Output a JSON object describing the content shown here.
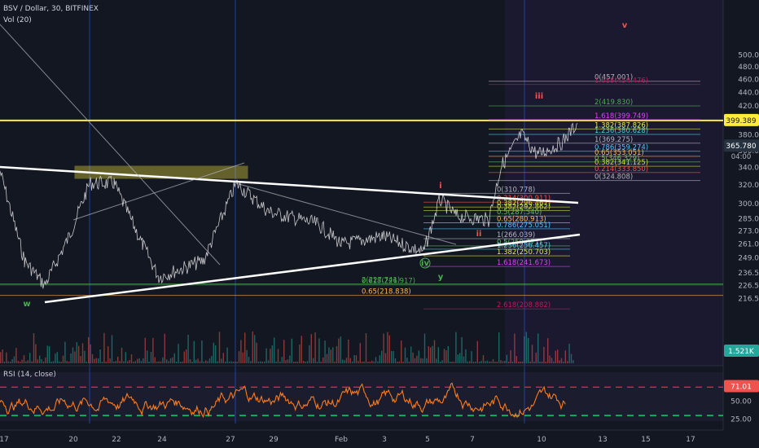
{
  "header": {
    "title": "BSV / Dollar, 30, BITFINEX",
    "volume": "Vol (20)",
    "rsi": "RSI (14, close)"
  },
  "chart_data": {
    "type": "line",
    "symbol": "BSV / Dollar",
    "interval": "30",
    "exchange": "BITFINEX",
    "y_scale": "log",
    "price_ticks": [
      500.0,
      480.0,
      460.0,
      440.0,
      420.0,
      380.0,
      360.0,
      340.0,
      320.0,
      300.0,
      285.0,
      273.0,
      261.0,
      249.0,
      236.5,
      226.5,
      216.5
    ],
    "x_ticks": [
      "17",
      "20",
      "22",
      "24",
      "27",
      "29",
      "Feb",
      "3",
      "5",
      "7",
      "10",
      "13",
      "15",
      "17"
    ],
    "last_price": "365.780",
    "countdown": "04:00",
    "marked_level": "399.389",
    "volume_last": "1.521K",
    "rsi_ticks": [
      "75.00",
      "50.00",
      "25.00"
    ],
    "rsi_last": "71.01",
    "rsi_levels": [
      70,
      30
    ],
    "fib_labels": [
      {
        "text": "0(457.001)",
        "price": 457.0,
        "color": "#b2b5be"
      },
      {
        "text": "1.618(454.476)",
        "price": 452.0,
        "color": "#c2185b"
      },
      {
        "text": "2(419.830)",
        "price": 419.8,
        "color": "#4caf50"
      },
      {
        "text": "1.618(399.749)",
        "price": 400.5,
        "color": "#e040fb"
      },
      {
        "text": "1.382(387.826)",
        "price": 387.8,
        "color": "#e6e65a"
      },
      {
        "text": "1.236(380.628)",
        "price": 380.6,
        "color": "#4dd0e1"
      },
      {
        "text": "1(369.275)",
        "price": 369.3,
        "color": "#b2b5be"
      },
      {
        "text": "0.786(359.274)",
        "price": 359.3,
        "color": "#4fc3f7"
      },
      {
        "text": "0.65(353.051)",
        "price": 353.1,
        "color": "#ffb74d"
      },
      {
        "text": "0.5(346.329)",
        "price": 346.3,
        "color": "#66bb6a"
      },
      {
        "text": "0.382(341.125)",
        "price": 341.1,
        "color": "#cddc39"
      },
      {
        "text": "0.214(333.850)",
        "price": 333.9,
        "color": "#ef5350"
      },
      {
        "text": "0(324.808)",
        "price": 324.8,
        "color": "#b2b5be"
      },
      {
        "text": "0(310.778)",
        "price": 310.8,
        "color": "#b2b5be"
      },
      {
        "text": "0.214(300.911)",
        "price": 301.5,
        "color": "#ef5350"
      },
      {
        "text": "0.382(292.862)",
        "price": 292.9,
        "color": "#cddc39"
      },
      {
        "text": "0.382(296.467)",
        "price": 296.5,
        "color": "#cddc39"
      },
      {
        "text": "0.5(287.540)",
        "price": 287.5,
        "color": "#66bb6a"
      },
      {
        "text": "0.65(280.913)",
        "price": 280.9,
        "color": "#ffb74d"
      },
      {
        "text": "0.786(275.051)",
        "price": 275.1,
        "color": "#4fc3f7"
      },
      {
        "text": "1(266.039)",
        "price": 266.0,
        "color": "#b2b5be"
      },
      {
        "text": "0.5(259.371)",
        "price": 259.4,
        "color": "#66bb6a"
      },
      {
        "text": "1.236(256.457)",
        "price": 256.5,
        "color": "#4dd0e1"
      },
      {
        "text": "1.382(250.703)",
        "price": 250.7,
        "color": "#e6e65a"
      },
      {
        "text": "1.618(241.673)",
        "price": 241.7,
        "color": "#e040fb"
      },
      {
        "text": "2(227.741)",
        "price": 227.7,
        "color": "#4caf50"
      },
      {
        "text": "0.618(226.917)",
        "price": 226.9,
        "color": "#4caf50"
      },
      {
        "text": "0.65(218.838)",
        "price": 218.8,
        "color": "#ffb74d"
      },
      {
        "text": "2.618(208.882)",
        "price": 208.9,
        "color": "#c2185b"
      }
    ],
    "wave_labels": [
      {
        "text": "w",
        "color": "#4caf50"
      },
      {
        "text": "y",
        "color": "#4caf50"
      },
      {
        "text": "iv",
        "color": "#4caf50"
      },
      {
        "text": "v",
        "color": "#ef5350"
      },
      {
        "text": "iii",
        "color": "#ef5350"
      },
      {
        "text": "i",
        "color": "#ef5350"
      },
      {
        "text": "ii",
        "color": "#ef5350"
      }
    ],
    "colors": {
      "background": "#131722",
      "price_line": "#e6e6e6",
      "rsi_line": "#ff7b1a",
      "yellow_level": "#ffeb3b",
      "last_price_badge": "#26323f",
      "volume_badge": "#26a69a",
      "rsi_badge": "#ef5350"
    }
  }
}
